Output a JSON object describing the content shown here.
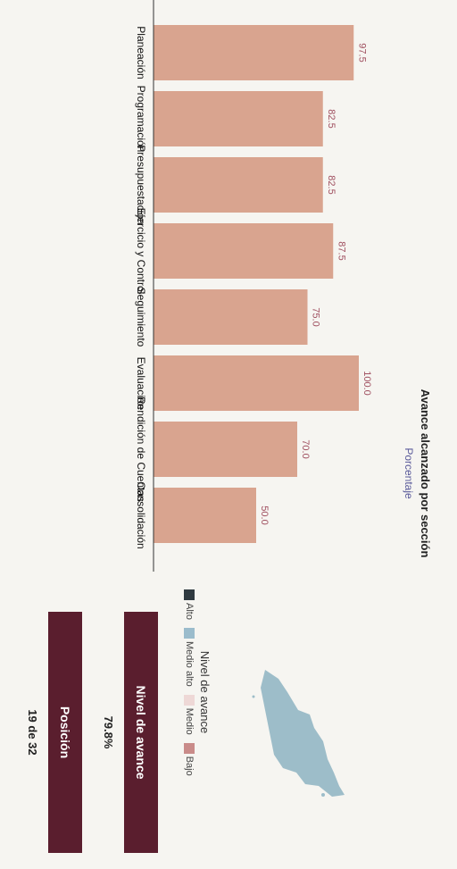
{
  "title": "Avance alcanzado por sección",
  "subtitle": "Porcentaje",
  "legend": {
    "title": "Nivel de avance",
    "items": [
      {
        "label": "Alto",
        "color": "#2f3a40"
      },
      {
        "label": "Medio alto",
        "color": "#9bbccc"
      },
      {
        "label": "Medio",
        "color": "#eed8d6"
      },
      {
        "label": "Bajo",
        "color": "#c98b89"
      }
    ]
  },
  "stats": {
    "level_label": "Nivel de avance",
    "level_value": "79.8%",
    "position_label": "Posición",
    "position_value": "19 de 32"
  },
  "colors": {
    "bar": "#d9a48f",
    "panel_header": "#5a1e2e",
    "map": "#9dbdc9"
  },
  "chart_data": {
    "type": "bar",
    "title": "Avance alcanzado por sección",
    "subtitle": "Porcentaje",
    "categories": [
      "Planeación",
      "Programación",
      "Presupuestación",
      "Ejercicio y Control",
      "Seguimiento",
      "Evaluación",
      "Rendición de Cuentas",
      "Consolidación"
    ],
    "values": [
      97.5,
      82.5,
      82.5,
      87.5,
      75.0,
      100.0,
      70.0,
      50.0
    ],
    "value_labels": [
      "97.5",
      "82.5",
      "82.5",
      "87.5",
      "75.0",
      "100.0",
      "70.0",
      "50.0"
    ],
    "ylim": [
      0,
      100
    ]
  }
}
